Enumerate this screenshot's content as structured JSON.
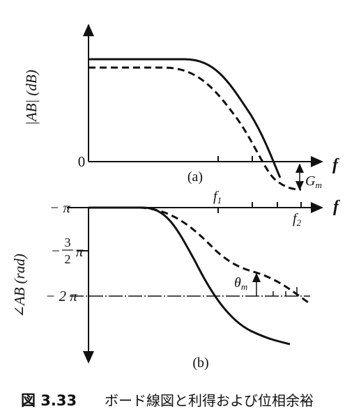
{
  "figure": {
    "gain_plot": {
      "y_label": "|AB| (dB)",
      "zero_label": "0",
      "x_label": "f",
      "panel_label": "(a)",
      "margin_label": {
        "main": "G",
        "sub": "m"
      }
    },
    "phase_plot": {
      "y_label": "∠AB (rad)",
      "x_label": "f",
      "f1_label": {
        "main": "f",
        "sub": "1"
      },
      "f2_label": {
        "main": "f",
        "sub": "2"
      },
      "tick_pi": "− π",
      "tick_three_halves": {
        "sign": "−",
        "num": "3",
        "den": "2",
        "pi": "π"
      },
      "tick_two_pi": "− 2 π",
      "margin_label": {
        "main": "θ",
        "sub": "m"
      },
      "panel_label": "(b)"
    },
    "caption": {
      "number": "図 3.33",
      "text": "ボード線図と利得および位相余裕"
    }
  }
}
